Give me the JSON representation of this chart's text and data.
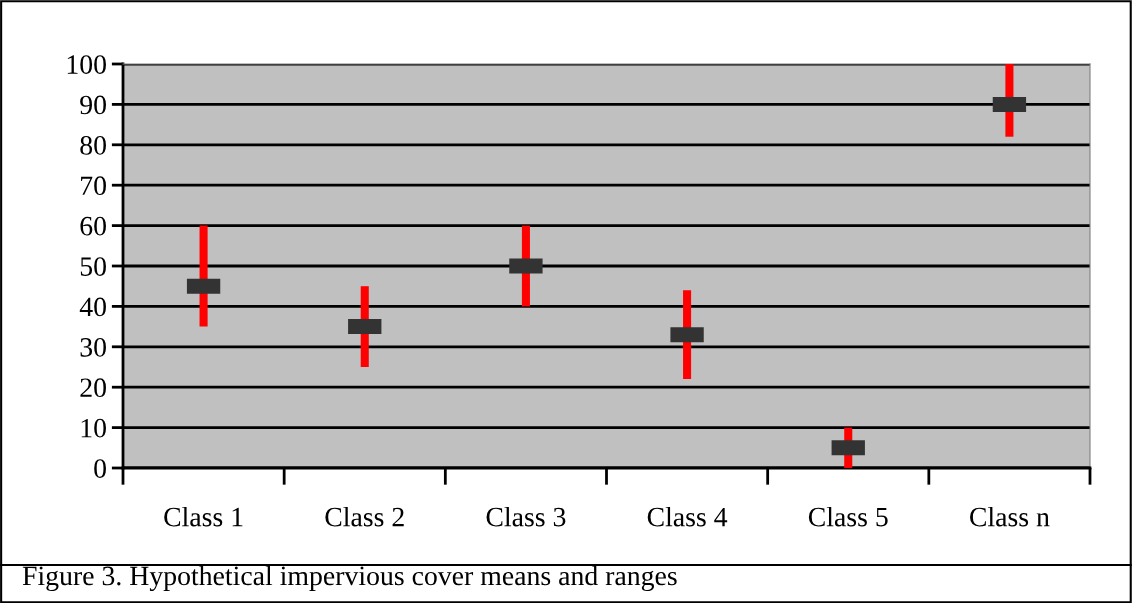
{
  "chart_data": {
    "type": "bar",
    "categories": [
      "Class 1",
      "Class 2",
      "Class 3",
      "Class 4",
      "Class 5",
      "Class n"
    ],
    "series": [
      {
        "type": "bar",
        "color": "#ff0000",
        "base": [
          35,
          25,
          40,
          22,
          0,
          82
        ],
        "values": [
          25,
          20,
          20,
          22,
          10,
          18
        ]
      },
      {
        "type": "scatter",
        "color": "#333333",
        "values": [
          45,
          35,
          50,
          33,
          5,
          90
        ]
      }
    ],
    "ylim": [
      0,
      100
    ],
    "yticks": [
      0,
      10,
      20,
      30,
      40,
      50,
      60,
      70,
      80,
      90,
      100
    ],
    "grid": "y",
    "annotations": [
      "Figure 3. Hypothetical impervious cover means and ranges"
    ]
  }
}
